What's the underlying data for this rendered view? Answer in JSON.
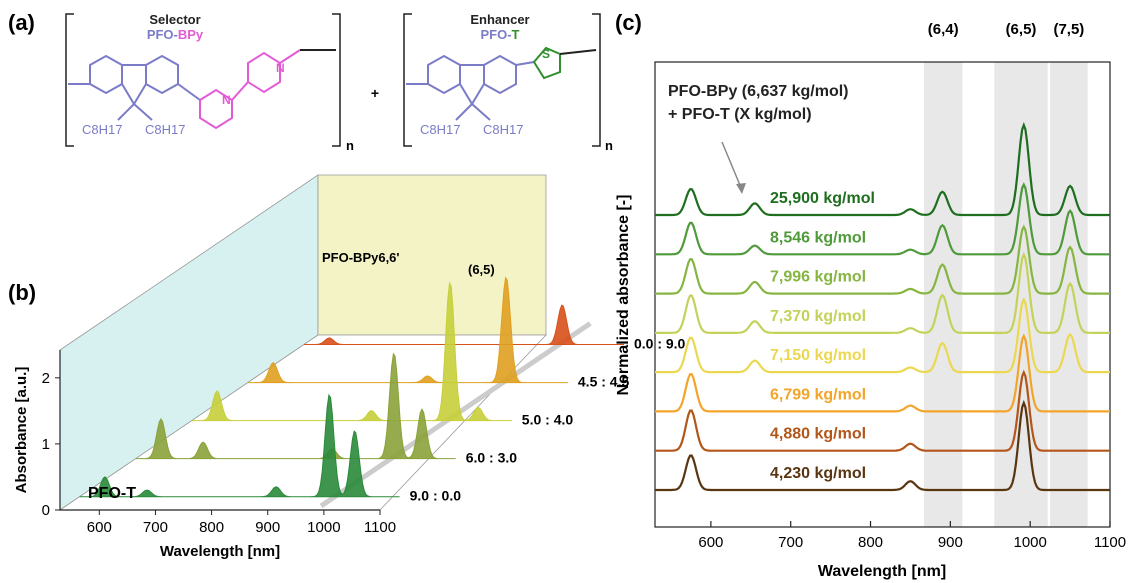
{
  "panels": {
    "a": "(a)",
    "b": "(b)",
    "c": "(c)"
  },
  "panel_a": {
    "selector": {
      "role": "Selector",
      "name_part1": "PFO-",
      "name_part2": "BPy",
      "n": "n",
      "heteroatom": "N",
      "side_chain": "C8H17"
    },
    "plus": "+",
    "enhancer": {
      "role": "Enhancer",
      "name_part1": "PFO-",
      "name_part2": "T",
      "n": "n",
      "heteroatom": "S",
      "side_chain": "C8H17"
    },
    "colors": {
      "fluorene": "#7b7bc8",
      "bipyridine": "#e35ad6",
      "thiophene": "#2f8f2f",
      "bracket": "#222222"
    }
  },
  "chart_data": [
    {
      "type": "line",
      "panel": "b",
      "view": "3d-waterfall",
      "xlabel": "Wavelength [nm]",
      "ylabel": "Absorbance [a.u.]",
      "x_ticks": [
        600,
        700,
        800,
        900,
        1000,
        1100
      ],
      "y_ticks": [
        0,
        1,
        2
      ],
      "xlim": [
        530,
        1100
      ],
      "ylim": [
        0,
        2.3
      ],
      "front_label": "PFO-T",
      "back_label": "PFO-BPy6,6'",
      "peak_annotation": "(6,5)",
      "series": [
        {
          "name": "9.0 : 0.0",
          "color": "#2a8a3a",
          "peaks": [
            [
              575,
              0.3
            ],
            [
              650,
              0.1
            ],
            [
              880,
              0.15
            ],
            [
              975,
              1.55
            ],
            [
              1020,
              1.0
            ]
          ]
        },
        {
          "name": "6.0 : 3.0",
          "color": "#8aa23a",
          "peaks": [
            [
              575,
              0.6
            ],
            [
              650,
              0.25
            ],
            [
              880,
              0.15
            ],
            [
              990,
              1.6
            ],
            [
              1040,
              0.75
            ]
          ]
        },
        {
          "name": "5.0 : 4.0",
          "color": "#c7cf3a",
          "peaks": [
            [
              575,
              0.45
            ],
            [
              850,
              0.15
            ],
            [
              990,
              2.1
            ],
            [
              1040,
              0.2
            ]
          ]
        },
        {
          "name": "4.5 : 4.5",
          "color": "#e0a020",
          "peaks": [
            [
              575,
              0.3
            ],
            [
              850,
              0.1
            ],
            [
              990,
              1.6
            ]
          ]
        },
        {
          "name": "0.0 : 9.0",
          "color": "#d8501a",
          "peaks": [
            [
              575,
              0.1
            ],
            [
              990,
              0.6
            ]
          ]
        }
      ]
    },
    {
      "type": "line",
      "panel": "c",
      "xlabel": "Wavelength [nm]",
      "ylabel": "Normalized absorbance [-]",
      "x_ticks": [
        600,
        700,
        800,
        900,
        1000,
        1100
      ],
      "xlim": [
        530,
        1100
      ],
      "bands": [
        {
          "label": "(6,4)",
          "range": [
            867,
            915
          ]
        },
        {
          "label": "(6,5)",
          "range": [
            955,
            1022
          ]
        },
        {
          "label": "(7,5)",
          "range": [
            1025,
            1072
          ]
        }
      ],
      "annotation_line1": "PFO-BPy (6,637 kg/mol)",
      "annotation_line2": "+ PFO-T (X kg/mol)",
      "series": [
        {
          "name": "25,900 kg/mol",
          "color": "#1f6e1f",
          "peaks": [
            [
              575,
              0.45
            ],
            [
              655,
              0.2
            ],
            [
              850,
              0.1
            ],
            [
              890,
              0.4
            ],
            [
              992,
              1.55
            ],
            [
              1050,
              0.5
            ]
          ]
        },
        {
          "name": "8,546 kg/mol",
          "color": "#4f9a3a",
          "peaks": [
            [
              575,
              0.55
            ],
            [
              655,
              0.15
            ],
            [
              850,
              0.08
            ],
            [
              890,
              0.5
            ],
            [
              992,
              1.2
            ],
            [
              1050,
              0.75
            ]
          ]
        },
        {
          "name": "7,996 kg/mol",
          "color": "#86b542",
          "peaks": [
            [
              575,
              0.6
            ],
            [
              655,
              0.2
            ],
            [
              850,
              0.08
            ],
            [
              890,
              0.5
            ],
            [
              992,
              1.15
            ],
            [
              1050,
              0.8
            ]
          ]
        },
        {
          "name": "7,370 kg/mol",
          "color": "#c4d25a",
          "peaks": [
            [
              575,
              0.65
            ],
            [
              655,
              0.2
            ],
            [
              850,
              0.08
            ],
            [
              890,
              0.65
            ],
            [
              992,
              1.35
            ],
            [
              1050,
              0.85
            ]
          ]
        },
        {
          "name": "7,150 kg/mol",
          "color": "#ecd850",
          "peaks": [
            [
              575,
              0.6
            ],
            [
              655,
              0.2
            ],
            [
              850,
              0.08
            ],
            [
              890,
              0.5
            ],
            [
              992,
              1.25
            ],
            [
              1050,
              0.65
            ]
          ]
        },
        {
          "name": "6,799 kg/mol",
          "color": "#f3a42a",
          "peaks": [
            [
              575,
              0.65
            ],
            [
              850,
              0.1
            ],
            [
              992,
              1.3
            ]
          ]
        },
        {
          "name": "4,880 kg/mol",
          "color": "#b3561a",
          "peaks": [
            [
              575,
              0.7
            ],
            [
              850,
              0.12
            ],
            [
              992,
              1.35
            ]
          ]
        },
        {
          "name": "4,230 kg/mol",
          "color": "#5a3512",
          "peaks": [
            [
              575,
              0.6
            ],
            [
              850,
              0.15
            ],
            [
              992,
              1.5
            ]
          ]
        }
      ]
    }
  ]
}
